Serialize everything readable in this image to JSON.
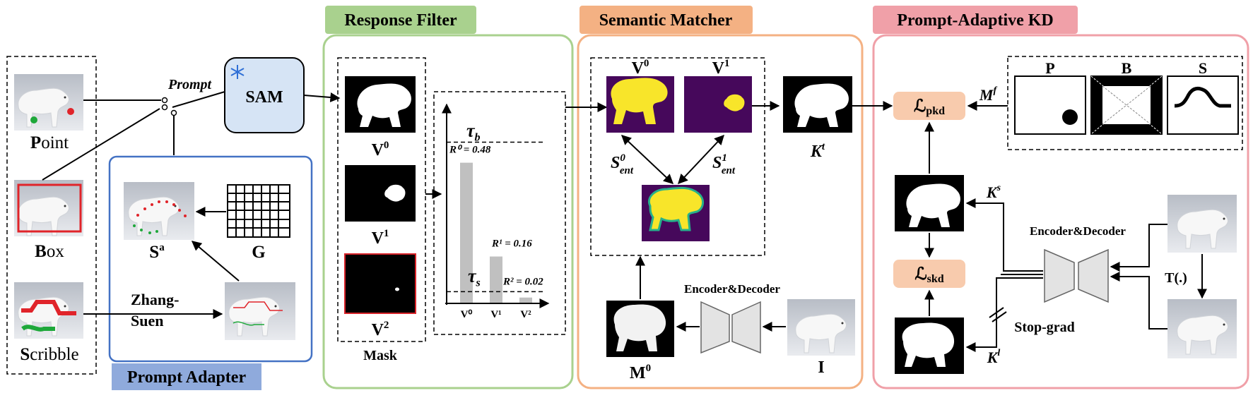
{
  "sections": {
    "response_filter": "Response Filter",
    "semantic_matcher": "Semantic Matcher",
    "prompt_adaptive_kd": "Prompt-Adaptive KD",
    "prompt_adapter": "Prompt Adapter"
  },
  "colors": {
    "response_filter": "#a9d18e",
    "semantic_matcher": "#f4b183",
    "prompt_adaptive_kd": "#f0a0a8",
    "prompt_adapter": "#8faadc",
    "sam_fill": "#d6e4f5",
    "loss_fill": "#f8cbad",
    "mask_yellow": "#f8e52a",
    "mask_purple": "#46085b",
    "ent_teal": "#27b08a"
  },
  "inputs": {
    "point": {
      "initial": "P",
      "rest": "oint"
    },
    "box": {
      "initial": "B",
      "rest": "ox"
    },
    "scribble": {
      "initial": "S",
      "rest": "cribble"
    }
  },
  "prompt_label": "Prompt",
  "sam_label": "SAM",
  "adapter": {
    "sa_main": "S",
    "sa_sup": "a",
    "g_label": "G",
    "zhang_line1": "Zhang-",
    "zhang_line2": "Suen"
  },
  "filter": {
    "masks": [
      {
        "main": "V",
        "sup": "0"
      },
      {
        "main": "V",
        "sup": "1"
      },
      {
        "main": "V",
        "sup": "2"
      }
    ],
    "mask_label": "Mask",
    "tau_b": {
      "main": "τ",
      "sub": "b"
    },
    "tau_s": {
      "main": "τ",
      "sub": "s"
    }
  },
  "chart_data": {
    "type": "bar",
    "categories": [
      "V⁰",
      "V¹",
      "V²"
    ],
    "values": [
      0.48,
      0.16,
      0.02
    ],
    "bar_labels": [
      "R⁰ = 0.48",
      "R¹ = 0.16",
      "R² = 0.02"
    ],
    "thresholds": [
      {
        "name": "τb",
        "value": 0.55
      },
      {
        "name": "τs",
        "value": 0.04
      }
    ],
    "ylim": [
      0,
      0.65
    ]
  },
  "matcher": {
    "v0": {
      "main": "V",
      "sup": "0"
    },
    "v1": {
      "main": "V",
      "sup": "1"
    },
    "s0": {
      "main": "S",
      "sup": "0",
      "sub": "ent"
    },
    "s1": {
      "main": "S",
      "sup": "1",
      "sub": "ent"
    },
    "kt": {
      "main": "K",
      "sup": "t"
    },
    "encoder_decoder": "Encoder&Decoder",
    "m0": {
      "main": "M",
      "sup": "0"
    },
    "i_label": "I"
  },
  "kd": {
    "loss_pkd": {
      "main": "ℒ",
      "sub": "pkd"
    },
    "loss_skd": {
      "main": "ℒ",
      "sub": "skd"
    },
    "mf": {
      "main": "M",
      "sup": "f"
    },
    "p_label": "P",
    "b_label": "B",
    "s_label": "S",
    "ks": {
      "main": "K",
      "sup": "s"
    },
    "kl": {
      "main": "K",
      "sup": "l"
    },
    "encoder_decoder": "Encoder&Decoder",
    "transform": "T(.)",
    "stop_grad": "Stop-grad"
  }
}
